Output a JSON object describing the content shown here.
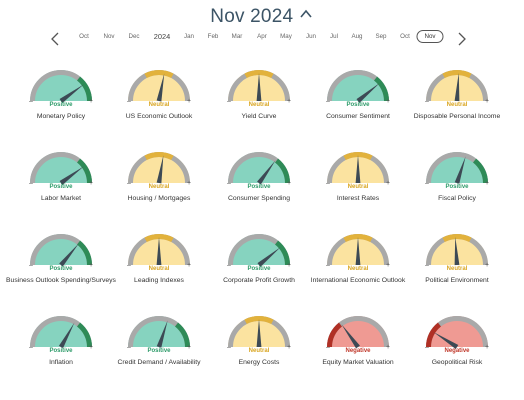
{
  "header": {
    "title": "Nov 2024"
  },
  "timeline": {
    "items": [
      {
        "label": "Oct",
        "selected": false,
        "year": false
      },
      {
        "label": "Nov",
        "selected": false,
        "year": false
      },
      {
        "label": "Dec",
        "selected": false,
        "year": false
      },
      {
        "label": "2024",
        "selected": false,
        "year": true
      },
      {
        "label": "Jan",
        "selected": false,
        "year": false
      },
      {
        "label": "Feb",
        "selected": false,
        "year": false
      },
      {
        "label": "Mar",
        "selected": false,
        "year": false
      },
      {
        "label": "Apr",
        "selected": false,
        "year": false
      },
      {
        "label": "May",
        "selected": false,
        "year": false
      },
      {
        "label": "Jun",
        "selected": false,
        "year": false
      },
      {
        "label": "Jul",
        "selected": false,
        "year": false
      },
      {
        "label": "Aug",
        "selected": false,
        "year": false
      },
      {
        "label": "Sep",
        "selected": false,
        "year": false
      },
      {
        "label": "Oct",
        "selected": false,
        "year": false
      },
      {
        "label": "Nov",
        "selected": true,
        "year": false
      }
    ]
  },
  "colors": {
    "positive_fill": "#86d3bf",
    "positive_dark": "#2e8b57",
    "positive_text": "#2e9b6a",
    "neutral_fill": "#fbe3a0",
    "neutral_dark": "#e2b23c",
    "neutral_text": "#d9a520",
    "negative_fill": "#ef9a93",
    "negative_dark": "#b03025",
    "negative_text": "#c0392b",
    "rim_gray": "#a9a9a9",
    "needle": "#3d4a55"
  },
  "gauges": [
    {
      "label": "Monetary Policy",
      "status": "Positive",
      "level": 0.8
    },
    {
      "label": "US Economic Outlook",
      "status": "Neutral",
      "level": 0.56
    },
    {
      "label": "Yield Curve",
      "status": "Neutral",
      "level": 0.5
    },
    {
      "label": "Consumer Sentiment",
      "status": "Positive",
      "level": 0.78
    },
    {
      "label": "Disposable Personal Income",
      "status": "Neutral",
      "level": 0.52
    },
    {
      "label": "Labor Market",
      "status": "Positive",
      "level": 0.8
    },
    {
      "label": "Housing / Mortgages",
      "status": "Neutral",
      "level": 0.55
    },
    {
      "label": "Consumer Spending",
      "status": "Positive",
      "level": 0.7
    },
    {
      "label": "Interest Rates",
      "status": "Neutral",
      "level": 0.5
    },
    {
      "label": "Fiscal Policy",
      "status": "Positive",
      "level": 0.6
    },
    {
      "label": "Business Outlook Spending/Surveys",
      "status": "Positive",
      "level": 0.72
    },
    {
      "label": "Leading Indexes",
      "status": "Neutral",
      "level": 0.5
    },
    {
      "label": "Corporate Profit Growth",
      "status": "Positive",
      "level": 0.78
    },
    {
      "label": "International Economic Outlook",
      "status": "Neutral",
      "level": 0.5
    },
    {
      "label": "Political Environment",
      "status": "Neutral",
      "level": 0.48
    },
    {
      "label": "Inflation",
      "status": "Positive",
      "level": 0.66
    },
    {
      "label": "Credit Demand / Availability",
      "status": "Positive",
      "level": 0.6
    },
    {
      "label": "Energy Costs",
      "status": "Neutral",
      "level": 0.5
    },
    {
      "label": "Equity Market Valuation",
      "status": "Negative",
      "level": 0.3
    },
    {
      "label": "Geopolitical Risk",
      "status": "Negative",
      "level": 0.18
    }
  ],
  "scale": {
    "minus": "–",
    "plus": "+"
  }
}
